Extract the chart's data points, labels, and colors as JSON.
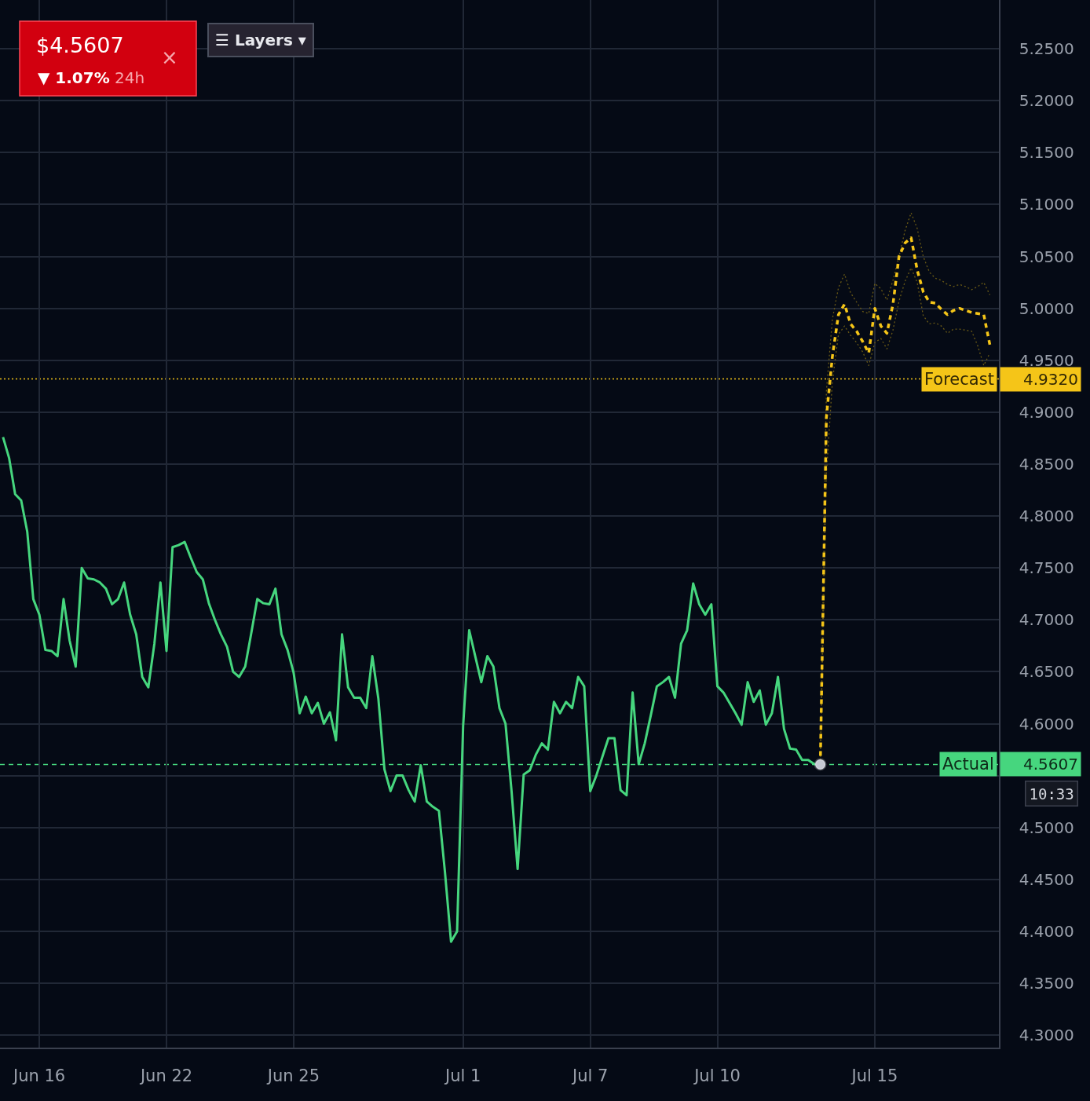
{
  "chart_data": {
    "type": "line",
    "title": "$4.5607",
    "subtitle": "▼ 1.07% 24h",
    "annotations": [
      "☰ Layers ▾",
      "×",
      "10:33",
      "4.9320",
      "4.5607"
    ],
    "categories": [
      null,
      null,
      null,
      null,
      null,
      null,
      "Jun 16",
      null,
      null,
      null,
      null,
      null,
      null,
      null,
      null,
      null,
      null,
      null,
      null,
      null,
      null,
      null,
      null,
      null,
      null,
      null,
      null,
      "Jun 22",
      null,
      null,
      null,
      null,
      null,
      null,
      null,
      null,
      null,
      null,
      null,
      null,
      null,
      null,
      null,
      null,
      null,
      null,
      null,
      null,
      "Jun 25",
      null,
      null,
      null,
      null,
      null,
      null,
      null,
      null,
      null,
      null,
      null,
      null,
      null,
      null,
      null,
      null,
      null,
      null,
      null,
      null,
      null,
      null,
      null,
      null,
      null,
      null,
      null,
      "Jul 1",
      null,
      null,
      null,
      null,
      null,
      null,
      null,
      null,
      null,
      null,
      null,
      null,
      null,
      null,
      null,
      null,
      null,
      null,
      null,
      null,
      "Jul 7",
      null,
      null,
      null,
      null,
      null,
      null,
      null,
      null,
      null,
      null,
      null,
      null,
      null,
      null,
      null,
      null,
      null,
      null,
      null,
      null,
      "Jul 10",
      null,
      null,
      null,
      null,
      null,
      null,
      null,
      null,
      null,
      null,
      null,
      null,
      null,
      null,
      null,
      null,
      null,
      null,
      null,
      null,
      null,
      null,
      null,
      null,
      null,
      "Jul 15",
      null,
      null,
      null,
      null,
      null,
      null,
      null,
      null,
      null,
      null,
      null,
      null,
      null,
      null,
      null,
      null,
      null,
      null,
      null,
      null
    ],
    "ylim": [
      4.288,
      5.297
    ],
    "yticks": [
      {
        "value": 4.3,
        "label": "4.3000"
      },
      {
        "value": 4.35,
        "label": "4.3500"
      },
      {
        "value": 4.4,
        "label": "4.4000"
      },
      {
        "value": 4.45,
        "label": "4.4500"
      },
      {
        "value": 4.5,
        "label": "4.5000"
      },
      {
        "value": 4.55,
        "label": null
      },
      {
        "value": 4.6,
        "label": "4.6000"
      },
      {
        "value": 4.65,
        "label": "4.6500"
      },
      {
        "value": 4.7,
        "label": "4.7000"
      },
      {
        "value": 4.75,
        "label": "4.7500"
      },
      {
        "value": 4.8,
        "label": "4.8000"
      },
      {
        "value": 4.85,
        "label": "4.8500"
      },
      {
        "value": 4.9,
        "label": "4.9000"
      },
      {
        "value": 4.95,
        "label": "4.9500"
      },
      {
        "value": 5.0,
        "label": "5.0000"
      },
      {
        "value": 5.05,
        "label": "5.0500"
      },
      {
        "value": 5.1,
        "label": "5.1000"
      },
      {
        "value": 5.15,
        "label": "5.1500"
      },
      {
        "value": 5.2,
        "label": "5.2000"
      },
      {
        "value": 5.25,
        "label": "5.2500"
      }
    ],
    "grid": true,
    "series": [
      {
        "color": "#46d67e",
        "line_style": "solid",
        "values": [
          4.876,
          4.856,
          4.821,
          4.815,
          4.785,
          4.72,
          4.705,
          4.671,
          4.67,
          4.665,
          4.72,
          4.68,
          4.655,
          4.75,
          4.74,
          4.739,
          4.736,
          4.73,
          4.715,
          4.72,
          4.736,
          4.705,
          4.686,
          4.645,
          4.635,
          4.677,
          4.736,
          4.67,
          4.77,
          4.772,
          4.775,
          4.76,
          4.746,
          4.739,
          4.716,
          4.7,
          4.686,
          4.674,
          4.65,
          4.645,
          4.655,
          4.687,
          4.72,
          4.716,
          4.715,
          4.73,
          4.686,
          4.671,
          4.649,
          4.61,
          4.626,
          4.61,
          4.62,
          4.6,
          4.611,
          4.584,
          4.686,
          4.635,
          4.625,
          4.625,
          4.615,
          4.665,
          4.624,
          4.556,
          4.535,
          4.55,
          4.55,
          4.536,
          4.525,
          4.56,
          4.525,
          4.52,
          4.516,
          4.457,
          4.39,
          4.4,
          4.598,
          4.69,
          4.665,
          4.64,
          4.665,
          4.655,
          4.615,
          4.6,
          4.535,
          4.46,
          4.551,
          4.555,
          4.57,
          4.581,
          4.575,
          4.621,
          4.61,
          4.621,
          4.615,
          4.645,
          4.636,
          4.535,
          4.55,
          4.568,
          4.586,
          4.586,
          4.536,
          4.531,
          4.63,
          4.561,
          4.581,
          4.608,
          4.636,
          4.64,
          4.645,
          4.625,
          4.677,
          4.69,
          4.735,
          4.715,
          4.705,
          4.715,
          4.636,
          4.63,
          4.62,
          4.61,
          4.599,
          4.64,
          4.621,
          4.632,
          4.599,
          4.61,
          4.645,
          4.595,
          4.576,
          4.575,
          4.565,
          4.565,
          4.561,
          4.5607,
          null,
          null,
          null,
          null,
          null,
          null,
          null,
          null,
          null,
          null,
          null,
          null,
          null,
          null,
          null,
          null,
          null,
          null,
          null,
          null,
          null,
          null,
          null,
          null,
          null,
          null,
          null,
          null,
          null
        ]
      },
      {
        "type": "line",
        "color": "#6a5a16",
        "line_style": "dotted",
        "values": [
          null,
          null,
          null,
          null,
          null,
          null,
          null,
          null,
          null,
          null,
          null,
          null,
          null,
          null,
          null,
          null,
          null,
          null,
          null,
          null,
          null,
          null,
          null,
          null,
          null,
          null,
          null,
          null,
          null,
          null,
          null,
          null,
          null,
          null,
          null,
          null,
          null,
          null,
          null,
          null,
          null,
          null,
          null,
          null,
          null,
          null,
          null,
          null,
          null,
          null,
          null,
          null,
          null,
          null,
          null,
          null,
          null,
          null,
          null,
          null,
          null,
          null,
          null,
          null,
          null,
          null,
          null,
          null,
          null,
          null,
          null,
          null,
          null,
          null,
          null,
          null,
          null,
          null,
          null,
          null,
          null,
          null,
          null,
          null,
          null,
          null,
          null,
          null,
          null,
          null,
          null,
          null,
          null,
          null,
          null,
          null,
          null,
          null,
          null,
          null,
          null,
          null,
          null,
          null,
          null,
          null,
          null,
          null,
          null,
          null,
          null,
          null,
          null,
          null,
          null,
          null,
          null,
          null,
          null,
          null,
          null,
          null,
          null,
          null,
          null,
          null,
          null,
          null,
          null,
          null,
          null,
          null,
          null,
          null,
          null,
          4.5607,
          4.92,
          4.99,
          5.02,
          5.033,
          5.015,
          5.006,
          4.997,
          4.995,
          5.024,
          5.019,
          5.008,
          5.027,
          5.05,
          5.075,
          5.092,
          5.077,
          5.05,
          5.035,
          5.029,
          5.027,
          5.023,
          5.021,
          5.023,
          5.021,
          5.018,
          5.021,
          5.025,
          5.013,
          null
        ]
      },
      {
        "type": "line",
        "color": "#6a5a16",
        "line_style": "dotted",
        "values": [
          null,
          null,
          null,
          null,
          null,
          null,
          null,
          null,
          null,
          null,
          null,
          null,
          null,
          null,
          null,
          null,
          null,
          null,
          null,
          null,
          null,
          null,
          null,
          null,
          null,
          null,
          null,
          null,
          null,
          null,
          null,
          null,
          null,
          null,
          null,
          null,
          null,
          null,
          null,
          null,
          null,
          null,
          null,
          null,
          null,
          null,
          null,
          null,
          null,
          null,
          null,
          null,
          null,
          null,
          null,
          null,
          null,
          null,
          null,
          null,
          null,
          null,
          null,
          null,
          null,
          null,
          null,
          null,
          null,
          null,
          null,
          null,
          null,
          null,
          null,
          null,
          null,
          null,
          null,
          null,
          null,
          null,
          null,
          null,
          null,
          null,
          null,
          null,
          null,
          null,
          null,
          null,
          null,
          null,
          null,
          null,
          null,
          null,
          null,
          null,
          null,
          null,
          null,
          null,
          null,
          null,
          null,
          null,
          null,
          null,
          null,
          null,
          null,
          null,
          null,
          null,
          null,
          null,
          null,
          null,
          null,
          null,
          null,
          null,
          null,
          null,
          null,
          null,
          null,
          null,
          null,
          null,
          null,
          null,
          null,
          4.5607,
          4.84,
          4.93,
          4.975,
          4.983,
          4.974,
          4.967,
          4.958,
          4.945,
          4.967,
          4.971,
          4.961,
          4.979,
          5.007,
          5.026,
          5.039,
          5.025,
          4.993,
          4.985,
          4.986,
          4.983,
          4.976,
          4.98,
          4.98,
          4.979,
          4.978,
          4.964,
          4.945,
          4.957,
          null
        ]
      },
      {
        "type": "line",
        "color": "#f5c518",
        "line_style": "dashed",
        "values": [
          null,
          null,
          null,
          null,
          null,
          null,
          null,
          null,
          null,
          null,
          null,
          null,
          null,
          null,
          null,
          null,
          null,
          null,
          null,
          null,
          null,
          null,
          null,
          null,
          null,
          null,
          null,
          null,
          null,
          null,
          null,
          null,
          null,
          null,
          null,
          null,
          null,
          null,
          null,
          null,
          null,
          null,
          null,
          null,
          null,
          null,
          null,
          null,
          null,
          null,
          null,
          null,
          null,
          null,
          null,
          null,
          null,
          null,
          null,
          null,
          null,
          null,
          null,
          null,
          null,
          null,
          null,
          null,
          null,
          null,
          null,
          null,
          null,
          null,
          null,
          null,
          null,
          null,
          null,
          null,
          null,
          null,
          null,
          null,
          null,
          null,
          null,
          null,
          null,
          null,
          null,
          null,
          null,
          null,
          null,
          null,
          null,
          null,
          null,
          null,
          null,
          null,
          null,
          null,
          null,
          null,
          null,
          null,
          null,
          null,
          null,
          null,
          null,
          null,
          null,
          null,
          null,
          null,
          null,
          null,
          null,
          null,
          null,
          null,
          null,
          null,
          null,
          null,
          null,
          null,
          null,
          null,
          null,
          null,
          null,
          4.5607,
          4.895,
          4.954,
          4.994,
          5.004,
          4.985,
          4.978,
          4.968,
          4.957,
          5.0,
          4.983,
          4.976,
          5.004,
          5.05,
          5.063,
          5.068,
          5.037,
          5.016,
          5.006,
          5.005,
          4.999,
          4.994,
          4.998,
          5.0,
          4.998,
          4.996,
          4.995,
          4.994,
          4.965,
          null
        ]
      },
      {
        "type": "scatter",
        "color": "#c5c9d3",
        "marker": "circle",
        "values": [
          null,
          null,
          null,
          null,
          null,
          null,
          null,
          null,
          null,
          null,
          null,
          null,
          null,
          null,
          null,
          null,
          null,
          null,
          null,
          null,
          null,
          null,
          null,
          null,
          null,
          null,
          null,
          null,
          null,
          null,
          null,
          null,
          null,
          null,
          null,
          null,
          null,
          null,
          null,
          null,
          null,
          null,
          null,
          null,
          null,
          null,
          null,
          null,
          null,
          null,
          null,
          null,
          null,
          null,
          null,
          null,
          null,
          null,
          null,
          null,
          null,
          null,
          null,
          null,
          null,
          null,
          null,
          null,
          null,
          null,
          null,
          null,
          null,
          null,
          null,
          null,
          null,
          null,
          null,
          null,
          null,
          null,
          null,
          null,
          null,
          null,
          null,
          null,
          null,
          null,
          null,
          null,
          null,
          null,
          null,
          null,
          null,
          null,
          null,
          null,
          null,
          null,
          null,
          null,
          null,
          null,
          null,
          null,
          null,
          null,
          null,
          null,
          null,
          null,
          null,
          null,
          null,
          null,
          null,
          null,
          null,
          null,
          null,
          null,
          null,
          null,
          null,
          null,
          null,
          null,
          null,
          null,
          null,
          null,
          null,
          4.5607,
          null,
          null,
          null,
          null,
          null,
          null,
          null,
          null,
          null,
          null,
          null,
          null,
          null,
          null,
          null,
          null,
          null,
          null,
          null,
          null,
          null,
          null,
          null,
          null,
          null,
          null,
          null,
          null,
          null
        ]
      }
    ],
    "ref_lines": [
      {
        "axis": "y",
        "value": 4.932,
        "label": "Forecast",
        "color": "#f5c518",
        "line_style": "dotted"
      },
      {
        "axis": "y",
        "value": 4.5607,
        "label": "Actual",
        "color": "#46d67e",
        "line_style": "dashed"
      }
    ]
  }
}
